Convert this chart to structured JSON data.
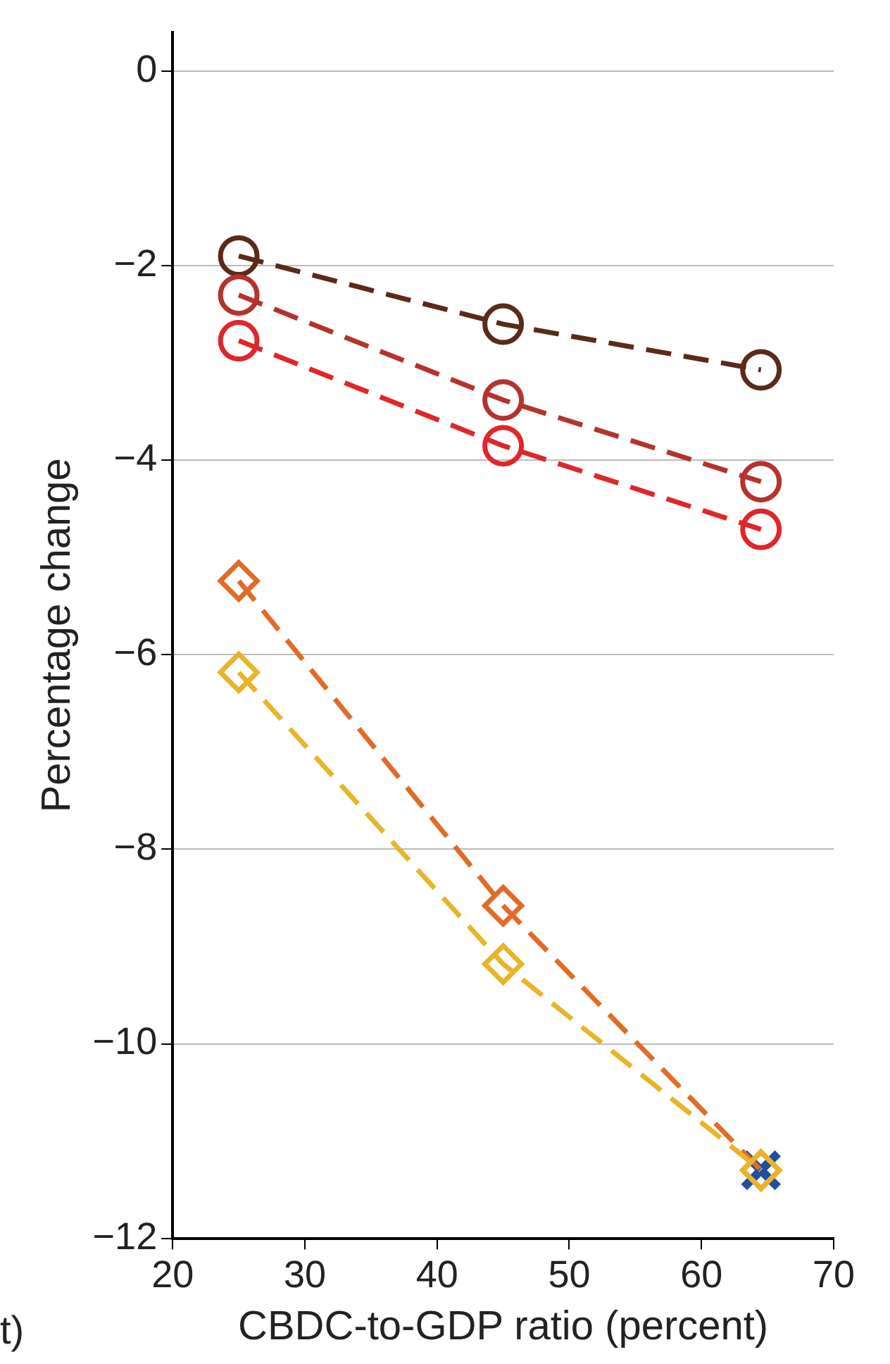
{
  "chart_data": {
    "type": "line",
    "xlabel": "CBDC-to-GDP ratio (percent)",
    "ylabel": "Percentage change",
    "annotations": [
      "t)"
    ],
    "xlim": [
      20,
      70
    ],
    "xticks": [
      20,
      30,
      40,
      50,
      60,
      70
    ],
    "ylim": [
      -12,
      0.4
    ],
    "yticks": [
      0,
      -2,
      -4,
      -6,
      -8,
      -10,
      -12
    ],
    "grid": "y",
    "legend": false,
    "line_style": "dashed",
    "series": [
      {
        "color": "#5a2a1a",
        "marker": "circle",
        "x": [
          25,
          45,
          64.5
        ],
        "values": [
          -1.9,
          -2.6,
          -3.07
        ]
      },
      {
        "color": "#b5332f",
        "marker": "circle",
        "x": [
          25,
          45,
          64.5
        ],
        "values": [
          -2.3,
          -3.38,
          -4.22
        ]
      },
      {
        "color": "#e0262b",
        "marker": "circle",
        "x": [
          25,
          45,
          64.5
        ],
        "values": [
          -2.77,
          -3.85,
          -4.71
        ]
      },
      {
        "color": "#e06c2a",
        "marker": "diamond",
        "x": [
          25,
          45,
          64.5
        ],
        "values": [
          -5.24,
          -8.58,
          -11.3
        ]
      },
      {
        "color": "#e8b52a",
        "marker": "diamond",
        "x": [
          25,
          45,
          64.5
        ],
        "values": [
          -6.18,
          -9.18,
          -11.3
        ]
      },
      {
        "type": "scatter",
        "color": "#1f4fa0",
        "marker": "cross",
        "x": [
          64.5
        ],
        "values": [
          -11.3
        ]
      }
    ]
  }
}
